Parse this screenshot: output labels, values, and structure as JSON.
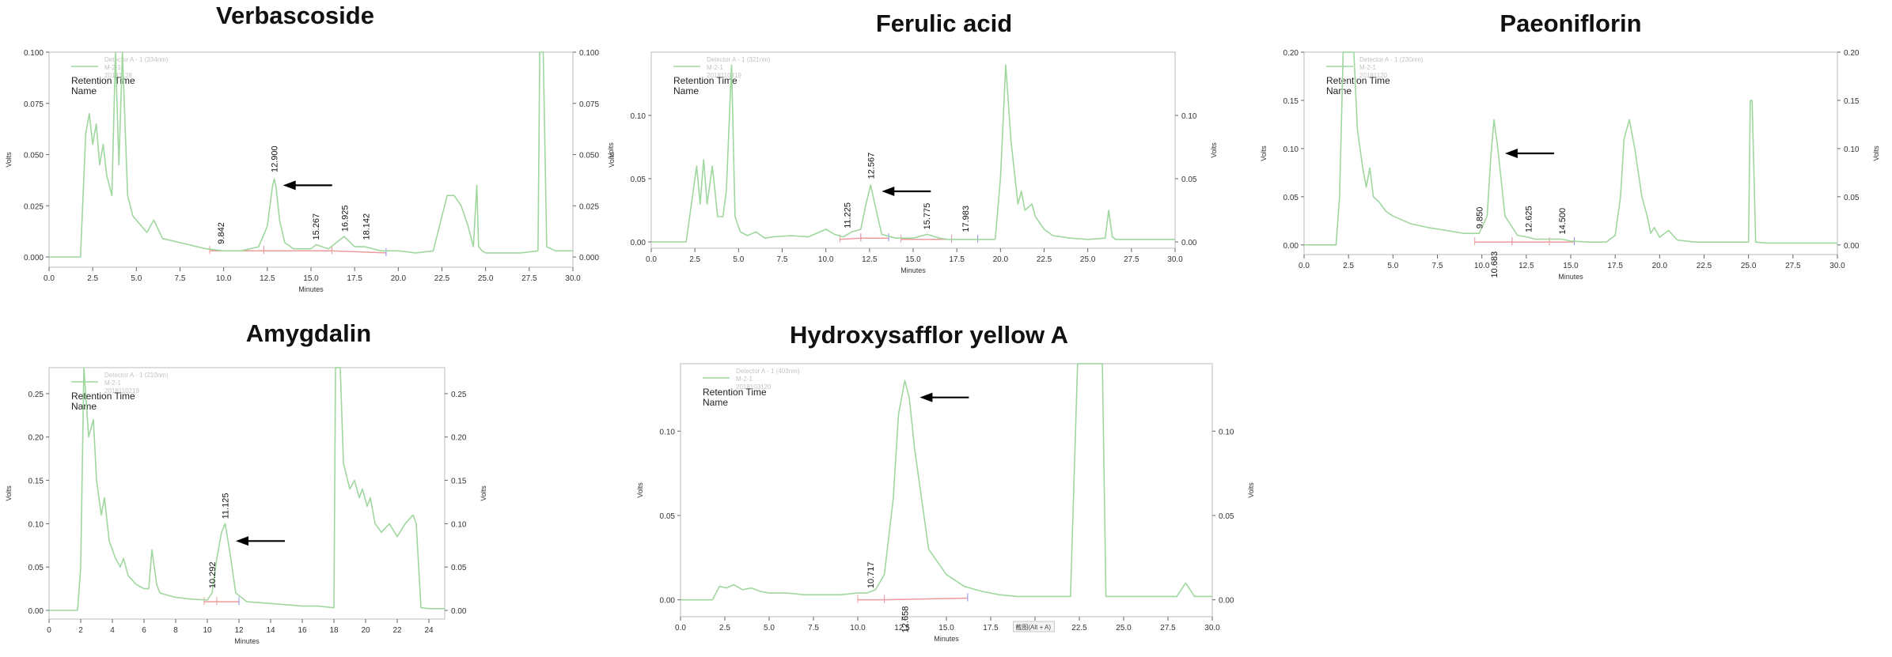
{
  "colors": {
    "trace": "#9fd79f",
    "frame": "#c6c6c6",
    "baseline": "#ef9b9b",
    "tick_blue": "#8c8cf0",
    "arrow": "#000000"
  },
  "legend": {
    "lines": [
      "Retention Time",
      "Name"
    ]
  },
  "chart_data": [
    {
      "type": "line",
      "title": "Verbascoside",
      "xlabel": "Minutes",
      "ylabel": "Volts",
      "xlim": [
        0,
        30
      ],
      "ylim": [
        -0.005,
        0.1
      ],
      "x_ticks": [
        "0.0",
        "2.5",
        "5.0",
        "7.5",
        "10.0",
        "12.5",
        "15.0",
        "17.5",
        "20.0",
        "22.5",
        "25.0",
        "27.5",
        "30.0"
      ],
      "y_ticks_left": [
        "0.000",
        "0.025",
        "0.050",
        "0.075",
        "0.100"
      ],
      "y_ticks_right": [
        "0.000",
        "0.025",
        "0.050",
        "0.075",
        "0.100"
      ],
      "series": [
        {
          "x": [
            0,
            1.8,
            2.1,
            2.3,
            2.5,
            2.7,
            2.9,
            3.1,
            3.3,
            3.6,
            3.8,
            4.0,
            4.2,
            4.5,
            4.8,
            5.2,
            5.6,
            6.0,
            6.5,
            7,
            8,
            9,
            10,
            11,
            12,
            12.5,
            12.8,
            12.9,
            13.0,
            13.2,
            13.5,
            14,
            15,
            15.3,
            16,
            16.9,
            17.5,
            18.1,
            19,
            20,
            21,
            22,
            22.8,
            23.2,
            23.6,
            24,
            24.3,
            24.5,
            24.6,
            24.8,
            25,
            26,
            27,
            28,
            28.1,
            28.3,
            28.5,
            29,
            30
          ],
          "y": [
            0,
            0,
            0.06,
            0.07,
            0.055,
            0.065,
            0.045,
            0.055,
            0.04,
            0.03,
            0.1,
            0.045,
            0.1,
            0.03,
            0.02,
            0.016,
            0.012,
            0.018,
            0.009,
            0.008,
            0.006,
            0.004,
            0.003,
            0.003,
            0.005,
            0.015,
            0.035,
            0.038,
            0.034,
            0.018,
            0.007,
            0.004,
            0.004,
            0.006,
            0.004,
            0.01,
            0.005,
            0.005,
            0.003,
            0.003,
            0.002,
            0.003,
            0.03,
            0.03,
            0.025,
            0.015,
            0.005,
            0.035,
            0.005,
            0.003,
            0.002,
            0.002,
            0.002,
            0.003,
            0.1,
            0.1,
            0.005,
            0.003,
            0.003
          ]
        }
      ],
      "peak_labels": [
        {
          "x": 9.842,
          "label": "9.842",
          "h": 0.004,
          "side": "above"
        },
        {
          "x": 12.9,
          "label": "12.900",
          "h": 0.039,
          "side": "above"
        },
        {
          "x": 15.267,
          "label": "15.267",
          "h": 0.006,
          "side": "above"
        },
        {
          "x": 16.925,
          "label": "16.925",
          "h": 0.01,
          "side": "above"
        },
        {
          "x": 18.142,
          "label": "18.142",
          "h": 0.006,
          "side": "above"
        }
      ],
      "arrow": {
        "x": 13.4,
        "y": 0.035
      },
      "baseline_segments": [
        [
          9.2,
          0.003,
          12.3,
          0.003
        ],
        [
          12.3,
          0.003,
          16.2,
          0.003
        ],
        [
          16.2,
          0.003,
          19.3,
          0.002
        ]
      ],
      "legend_text": [
        "Detector A - 1 (334nm)",
        "M-2-1",
        "20181128"
      ]
    },
    {
      "type": "line",
      "title": "Ferulic acid",
      "xlabel": "Minutes",
      "ylabel": "Volts",
      "xlim": [
        0,
        30
      ],
      "ylim": [
        -0.005,
        0.15
      ],
      "x_ticks": [
        "0.0",
        "2.5",
        "5.0",
        "7.5",
        "10.0",
        "12.5",
        "15.0",
        "17.5",
        "20.0",
        "22.5",
        "25.0",
        "27.5",
        "30.0"
      ],
      "y_ticks_left": [
        "0.00",
        "0.05",
        "0.10"
      ],
      "y_ticks_right": [
        "0.00",
        "0.05",
        "0.10"
      ],
      "series": [
        {
          "x": [
            0,
            2.0,
            2.3,
            2.6,
            2.8,
            3.0,
            3.2,
            3.5,
            3.8,
            4.1,
            4.3,
            4.6,
            4.8,
            5.1,
            5.5,
            6,
            6.5,
            7,
            8,
            9,
            10,
            10.5,
            11,
            11.5,
            12,
            12.3,
            12.567,
            12.8,
            13.2,
            14,
            15,
            15.8,
            16.5,
            17,
            18,
            18.5,
            19,
            19.7,
            20,
            20.3,
            20.6,
            21,
            21.2,
            21.4,
            21.8,
            22,
            22.5,
            23,
            24,
            25,
            26,
            26.2,
            26.4,
            26.6,
            27,
            28,
            29,
            30
          ],
          "y": [
            0,
            0,
            0.03,
            0.06,
            0.03,
            0.065,
            0.03,
            0.06,
            0.02,
            0.02,
            0.04,
            0.14,
            0.02,
            0.008,
            0.005,
            0.008,
            0.003,
            0.004,
            0.005,
            0.004,
            0.01,
            0.006,
            0.004,
            0.008,
            0.01,
            0.03,
            0.045,
            0.03,
            0.006,
            0.003,
            0.003,
            0.006,
            0.003,
            0.002,
            0.002,
            0.002,
            0.002,
            0.002,
            0.05,
            0.14,
            0.08,
            0.03,
            0.04,
            0.025,
            0.03,
            0.02,
            0.01,
            0.005,
            0.003,
            0.002,
            0.003,
            0.025,
            0.004,
            0.002,
            0.002,
            0.002,
            0.002,
            0.002
          ]
        }
      ],
      "peak_labels": [
        {
          "x": 11.225,
          "label": "11.225",
          "h": 0.007,
          "side": "above"
        },
        {
          "x": 12.567,
          "label": "12.567",
          "h": 0.046,
          "side": "above"
        },
        {
          "x": 15.775,
          "label": "15.775",
          "h": 0.006,
          "side": "above"
        },
        {
          "x": 17.983,
          "label": "17.983",
          "h": 0.004,
          "side": "above"
        }
      ],
      "arrow": {
        "x": 13.2,
        "y": 0.04
      },
      "baseline_segments": [
        [
          10.8,
          0.002,
          12.0,
          0.003
        ],
        [
          12.0,
          0.003,
          13.6,
          0.003
        ],
        [
          14.3,
          0.002,
          17.2,
          0.002
        ],
        [
          17.2,
          0.002,
          18.7,
          0.002
        ]
      ],
      "legend_text": [
        "Detector A - 1 (321nm)",
        "M-2-1",
        "2018110819"
      ]
    },
    {
      "type": "line",
      "title": "Paeoniflorin",
      "xlabel": "Minutes",
      "ylabel": "Volts",
      "xlim": [
        0,
        30
      ],
      "ylim": [
        -0.01,
        0.2
      ],
      "x_ticks": [
        "0.0",
        "2.5",
        "5.0",
        "7.5",
        "10.0",
        "12.5",
        "15.0",
        "17.5",
        "20.0",
        "22.5",
        "25.0",
        "27.5",
        "30.0"
      ],
      "y_ticks_left": [
        "0.00",
        "0.05",
        "0.10",
        "0.15",
        "0.20"
      ],
      "y_ticks_right": [
        "0.00",
        "0.05",
        "0.10",
        "0.15",
        "0.20"
      ],
      "series": [
        {
          "x": [
            0,
            1.8,
            2.0,
            2.2,
            2.5,
            2.8,
            3.0,
            3.3,
            3.5,
            3.7,
            3.9,
            4.2,
            4.6,
            5,
            6,
            7,
            8,
            9,
            9.85,
            10.3,
            10.5,
            10.683,
            10.9,
            11.3,
            12,
            12.6,
            13,
            14,
            14.5,
            15,
            16,
            17,
            17.5,
            17.8,
            18,
            18.3,
            18.6,
            19,
            19.3,
            19.5,
            19.7,
            20,
            20.5,
            21,
            22,
            23,
            24,
            25,
            25.1,
            25.2,
            25.4,
            26,
            28,
            30
          ],
          "y": [
            0,
            0,
            0.05,
            0.2,
            0.2,
            0.2,
            0.12,
            0.08,
            0.06,
            0.08,
            0.05,
            0.045,
            0.035,
            0.03,
            0.022,
            0.018,
            0.015,
            0.012,
            0.012,
            0.03,
            0.09,
            0.13,
            0.1,
            0.03,
            0.01,
            0.008,
            0.006,
            0.006,
            0.006,
            0.004,
            0.003,
            0.003,
            0.01,
            0.05,
            0.11,
            0.13,
            0.1,
            0.05,
            0.03,
            0.012,
            0.018,
            0.008,
            0.015,
            0.005,
            0.003,
            0.003,
            0.003,
            0.003,
            0.15,
            0.15,
            0.003,
            0.002,
            0.002,
            0.002
          ]
        }
      ],
      "peak_labels": [
        {
          "x": 9.85,
          "label": "9.850",
          "h": 0.012,
          "side": "above"
        },
        {
          "x": 10.683,
          "label": "10.683",
          "h": 0.0,
          "side": "below"
        },
        {
          "x": 12.625,
          "label": "12.625",
          "h": 0.008,
          "side": "above"
        },
        {
          "x": 14.5,
          "label": "14.500",
          "h": 0.006,
          "side": "above"
        }
      ],
      "arrow": {
        "x": 11.3,
        "y": 0.095
      },
      "baseline_segments": [
        [
          9.6,
          0.003,
          11.7,
          0.003
        ],
        [
          11.7,
          0.003,
          13.8,
          0.003
        ],
        [
          13.8,
          0.003,
          15.2,
          0.003
        ]
      ],
      "legend_text": [
        "Detector A - 1 (230nm)",
        "M-2-1",
        "20181120"
      ]
    },
    {
      "type": "line",
      "title": "Amygdalin",
      "xlabel": "Minutes",
      "ylabel": "Volts",
      "xlim": [
        0,
        25
      ],
      "ylim": [
        -0.01,
        0.28
      ],
      "x_ticks": [
        "0",
        "2",
        "4",
        "6",
        "8",
        "10",
        "12",
        "14",
        "16",
        "18",
        "20",
        "22",
        "24"
      ],
      "y_ticks_left": [
        "0.00",
        "0.05",
        "0.10",
        "0.15",
        "0.20",
        "0.25"
      ],
      "y_ticks_right": [
        "0.00",
        "0.05",
        "0.10",
        "0.15",
        "0.20",
        "0.25"
      ],
      "series": [
        {
          "x": [
            0,
            1.8,
            2.0,
            2.2,
            2.5,
            2.8,
            3.0,
            3.3,
            3.5,
            3.8,
            4.2,
            4.5,
            4.7,
            5,
            5.5,
            6,
            6.3,
            6.5,
            6.8,
            7,
            8,
            9,
            10,
            10.3,
            10.6,
            10.9,
            11.125,
            11.4,
            11.8,
            12.5,
            14,
            16,
            17,
            18,
            18.1,
            18.4,
            18.6,
            19,
            19.3,
            19.6,
            19.8,
            20.1,
            20.3,
            20.6,
            21,
            21.5,
            22,
            22.5,
            23,
            23.2,
            23.5,
            24,
            25
          ],
          "y": [
            0,
            0,
            0.05,
            0.28,
            0.2,
            0.22,
            0.15,
            0.11,
            0.13,
            0.08,
            0.06,
            0.05,
            0.06,
            0.04,
            0.03,
            0.025,
            0.025,
            0.07,
            0.03,
            0.02,
            0.015,
            0.013,
            0.012,
            0.02,
            0.06,
            0.09,
            0.1,
            0.07,
            0.02,
            0.01,
            0.008,
            0.005,
            0.005,
            0.003,
            0.28,
            0.28,
            0.17,
            0.14,
            0.15,
            0.13,
            0.14,
            0.12,
            0.13,
            0.1,
            0.09,
            0.1,
            0.085,
            0.1,
            0.11,
            0.1,
            0.003,
            0.002,
            0.002
          ]
        }
      ],
      "peak_labels": [
        {
          "x": 10.292,
          "label": "10.292",
          "h": 0.02,
          "side": "above"
        },
        {
          "x": 11.125,
          "label": "11.125",
          "h": 0.1,
          "side": "above"
        }
      ],
      "arrow": {
        "x": 11.8,
        "y": 0.08
      },
      "baseline_segments": [
        [
          9.8,
          0.01,
          10.6,
          0.01
        ],
        [
          10.6,
          0.01,
          12.0,
          0.01
        ]
      ],
      "legend_text": [
        "Detector A - 1 (210nm)",
        "M-2-1",
        "2018110219"
      ]
    },
    {
      "type": "line",
      "title": "Hydroxysafflor yellow A",
      "xlabel": "Minutes",
      "ylabel": "Volts",
      "xlim": [
        0,
        30
      ],
      "ylim": [
        -0.01,
        0.14
      ],
      "x_ticks": [
        "0.0",
        "2.5",
        "5.0",
        "7.5",
        "10.0",
        "12.5",
        "15.0",
        "17.5",
        "20.0",
        "22.5",
        "25.0",
        "27.5",
        "30.0"
      ],
      "y_ticks_left": [
        "0.00",
        "0.05",
        "0.10"
      ],
      "y_ticks_right": [
        "0.00",
        "0.05",
        "0.10"
      ],
      "series": [
        {
          "x": [
            0,
            1.8,
            2.2,
            2.6,
            3,
            3.5,
            4,
            4.5,
            5,
            6,
            7,
            8,
            9,
            10,
            10.5,
            11,
            11.5,
            12,
            12.3,
            12.658,
            12.9,
            13.2,
            13.6,
            14,
            15,
            16,
            17,
            18,
            19,
            20,
            21,
            22,
            22.4,
            22.6,
            23,
            23.8,
            24,
            25,
            26,
            27,
            28,
            28.5,
            29,
            30
          ],
          "y": [
            0,
            0,
            0.008,
            0.007,
            0.009,
            0.006,
            0.007,
            0.005,
            0.004,
            0.004,
            0.003,
            0.003,
            0.003,
            0.004,
            0.004,
            0.006,
            0.015,
            0.06,
            0.11,
            0.13,
            0.12,
            0.09,
            0.06,
            0.03,
            0.015,
            0.008,
            0.005,
            0.003,
            0.002,
            0.002,
            0.002,
            0.002,
            0.14,
            0.14,
            0.14,
            0.14,
            0.002,
            0.002,
            0.002,
            0.002,
            0.002,
            0.01,
            0.002,
            0.002
          ]
        }
      ],
      "peak_labels": [
        {
          "x": 10.717,
          "label": "10.717",
          "h": 0.004,
          "side": "above"
        },
        {
          "x": 12.658,
          "label": "12.658",
          "h": 0.0,
          "side": "below"
        }
      ],
      "arrow": {
        "x": 13.5,
        "y": 0.12
      },
      "baseline_segments": [
        [
          10.0,
          0.0,
          11.5,
          0.0
        ],
        [
          11.5,
          0.0,
          16.2,
          0.001
        ]
      ],
      "legend_text": [
        "Detector A - 1 (403nm)",
        "M-2-1",
        "2018103120"
      ],
      "annotation": "截图(Alt + A)"
    }
  ]
}
